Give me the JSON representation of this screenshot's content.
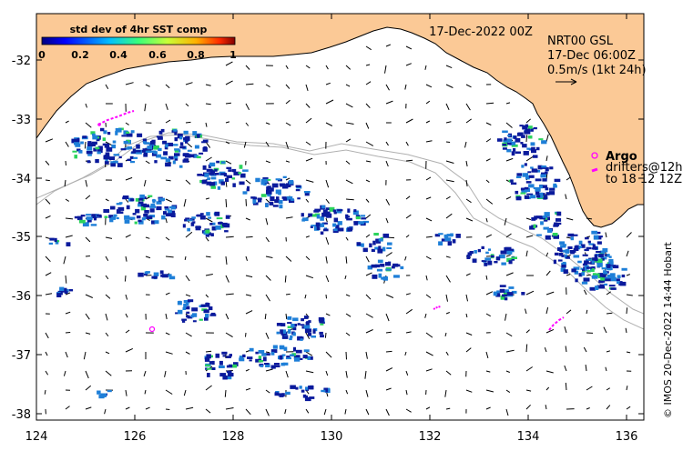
{
  "map": {
    "date_title": "17-Dec-2022 00Z",
    "colorbar": {
      "title": "std dev of 4hr SST comp",
      "ticks": [
        "0",
        "0.2",
        "0.4",
        "0.6",
        "0.8",
        "1"
      ],
      "range": [
        0,
        1
      ]
    },
    "current_legend": {
      "line1": "NRT00 GSL",
      "line2": "17-Dec 06:00Z",
      "line3": "0.5m/s (1kt 24h)"
    },
    "argo_label": "Argo",
    "drifters_line1": "drifters@12h",
    "drifters_line2": "to 18 12 12Z",
    "credit": "© IMOS 20-Dec-2022 14:44 Hobart",
    "x_ticks": [
      "124",
      "126",
      "128",
      "130",
      "132",
      "134",
      "136"
    ],
    "y_ticks": [
      "-32",
      "-33",
      "-34",
      "-35",
      "-36",
      "-37",
      "-38"
    ],
    "lon_range": [
      124,
      136.3
    ],
    "lat_range": [
      -38.2,
      -31.1
    ],
    "colors": {
      "land": "#fbc996",
      "coast": "#000000",
      "bathymetry": "#b0b0b0",
      "drifter": "#ff00ff",
      "sst_low": "#0a1a9c",
      "sst_mid": "#1e7fd8",
      "sst_high": "#2bd35c"
    }
  }
}
